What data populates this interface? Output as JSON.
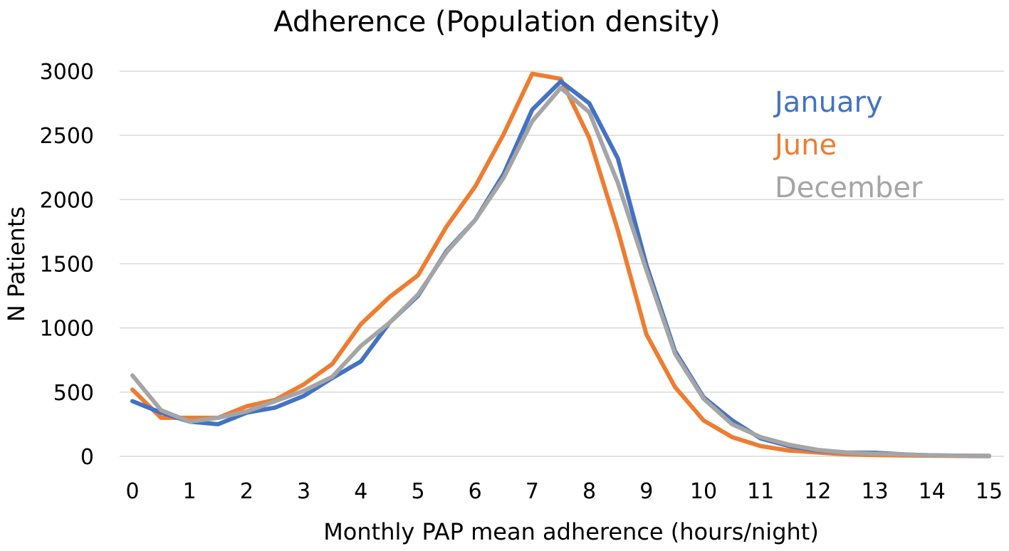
{
  "chart_data": {
    "type": "line",
    "title": "Adherence (Population density)",
    "xlabel": "Monthly PAP mean adherence (hours/night)",
    "ylabel": "N Patients",
    "xlim": [
      0,
      15
    ],
    "ylim": [
      0,
      3000
    ],
    "x_ticks": [
      "0",
      "1",
      "2",
      "3",
      "4",
      "5",
      "6",
      "7",
      "8",
      "9",
      "10",
      "11",
      "12",
      "13",
      "14",
      "15"
    ],
    "y_ticks": [
      "0",
      "500",
      "1000",
      "1500",
      "2000",
      "2500",
      "3000"
    ],
    "grid": true,
    "legend_position": "top-right",
    "x": [
      0,
      0.5,
      1,
      1.5,
      2,
      2.5,
      3,
      3.5,
      4,
      4.5,
      5,
      5.5,
      6,
      6.5,
      7,
      7.5,
      8,
      8.5,
      9,
      9.5,
      10,
      10.5,
      11,
      11.5,
      12,
      12.5,
      13,
      13.5,
      14,
      14.5,
      15
    ],
    "series": [
      {
        "name": "January",
        "color": "#4472c4",
        "values": [
          430,
          340,
          270,
          250,
          340,
          380,
          470,
          610,
          740,
          1040,
          1250,
          1600,
          1840,
          2200,
          2700,
          2920,
          2750,
          2320,
          1490,
          820,
          460,
          280,
          140,
          80,
          45,
          30,
          28,
          15,
          8,
          5,
          3
        ]
      },
      {
        "name": "June",
        "color": "#ed7d31",
        "values": [
          520,
          300,
          300,
          300,
          390,
          440,
          560,
          720,
          1030,
          1240,
          1410,
          1790,
          2100,
          2510,
          2980,
          2940,
          2480,
          1760,
          950,
          540,
          280,
          150,
          80,
          45,
          30,
          15,
          10,
          7,
          5,
          3,
          2
        ]
      },
      {
        "name": "December",
        "color": "#a5a5a5",
        "values": [
          630,
          360,
          270,
          300,
          350,
          430,
          510,
          620,
          860,
          1040,
          1260,
          1590,
          1840,
          2170,
          2610,
          2870,
          2680,
          2130,
          1450,
          800,
          450,
          250,
          150,
          90,
          50,
          30,
          20,
          15,
          8,
          5,
          5
        ]
      }
    ]
  }
}
